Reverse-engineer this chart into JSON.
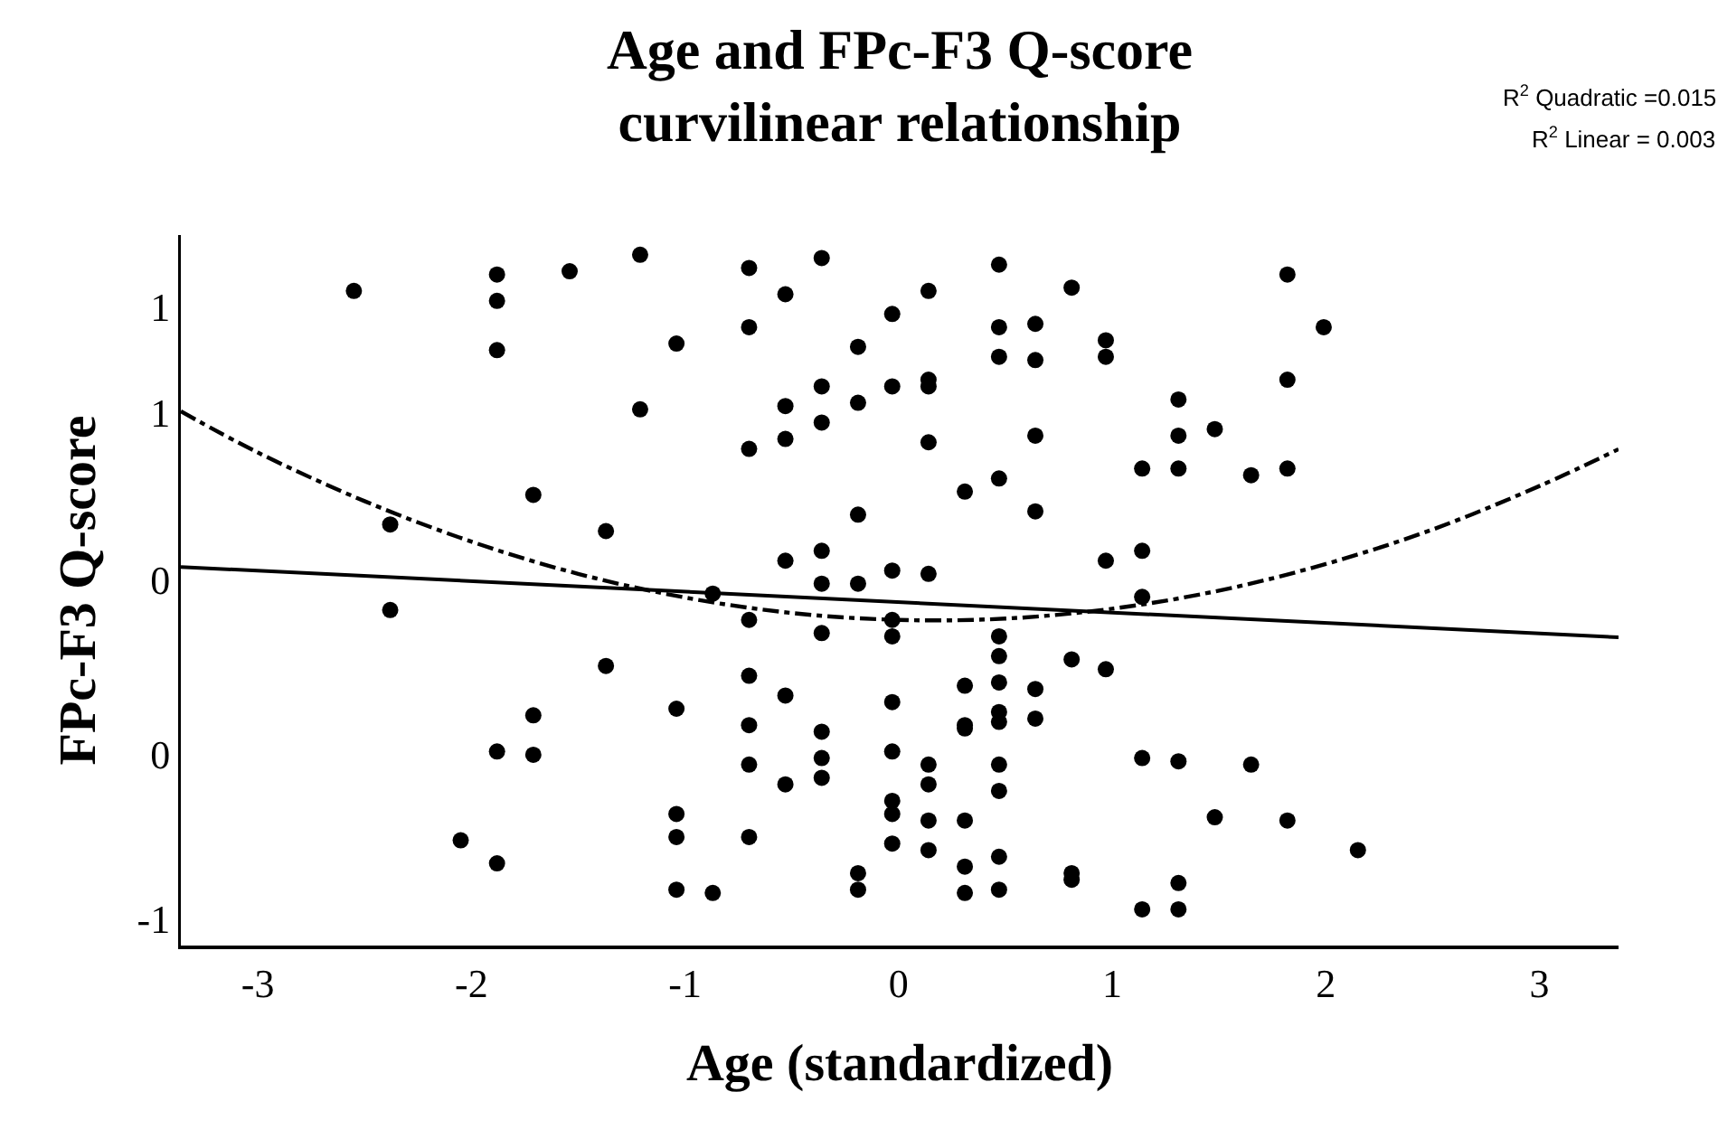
{
  "chart_data": {
    "type": "scatter",
    "title": "Age and FPc-F3 Q-score\ncurvilinear relationship",
    "xlabel": "Age (standardized)",
    "ylabel": "FPc-F3 Q-score",
    "annotations": [
      "R$^{2}$ Quadratic =0.015",
      "R$^{2}$ Linear = 0.003"
    ],
    "xlim": [
      -3.36,
      3.37
    ],
    "ylim": [
      -1.08,
      1.08
    ],
    "xticks": [
      -3,
      -2,
      -1,
      0,
      1,
      2,
      3
    ],
    "yticks": [
      {
        "value": -1,
        "label": "-1"
      },
      {
        "value": -0.5,
        "label": "0"
      },
      {
        "value": 0.03,
        "label": "0"
      },
      {
        "value": 0.54,
        "label": "1"
      },
      {
        "value": 0.86,
        "label": "1"
      }
    ],
    "grid": false,
    "marker": "circle",
    "series": [
      {
        "color": "#000000",
        "x": [
          -2.55,
          -1.88,
          -1.88,
          -1.88,
          -1.54,
          -1.21,
          -1.04,
          -1.21,
          -1.71,
          -1.37,
          -2.38,
          -2.38,
          -0.87,
          -1.37,
          -1.04,
          -1.71,
          -1.88,
          -1.71,
          -1.04,
          -1.04,
          -2.05,
          -1.88,
          -1.04,
          -0.87,
          -0.7,
          -0.36,
          -0.53,
          -0.7,
          -0.03,
          0.14,
          0.47,
          0.81,
          0.47,
          0.64,
          0.47,
          0.64,
          0.97,
          0.97,
          -0.19,
          -0.53,
          -0.36,
          -0.19,
          -0.03,
          0.14,
          0.14,
          -0.36,
          -0.53,
          -0.7,
          0.14,
          0.64,
          1.31,
          1.31,
          1.31,
          1.14,
          0.31,
          0.47,
          0.64,
          -0.19,
          -0.53,
          -0.36,
          -0.36,
          -0.19,
          -0.03,
          0.14,
          0.97,
          1.14,
          1.14,
          -0.7,
          -0.36,
          -0.03,
          -0.03,
          0.47,
          0.47,
          0.81,
          0.97,
          -0.7,
          -0.53,
          -0.7,
          -0.7,
          -0.53,
          -0.36,
          -0.36,
          -0.36,
          -0.03,
          -0.03,
          0.14,
          0.14,
          0.31,
          0.31,
          0.31,
          0.47,
          0.47,
          0.47,
          0.47,
          0.47,
          0.64,
          0.64,
          -0.03,
          -0.03,
          -0.03,
          0.14,
          0.14,
          0.31,
          0.31,
          0.31,
          0.47,
          0.47,
          -0.19,
          -0.19,
          0.81,
          0.81,
          1.14,
          1.31,
          -0.7,
          1.14,
          1.31,
          1.31,
          1.82,
          1.99,
          1.82,
          1.48,
          1.65,
          1.82,
          1.65,
          1.48,
          1.82,
          2.15
        ],
        "values": [
          0.91,
          0.96,
          0.88,
          0.73,
          0.97,
          1.02,
          0.75,
          0.55,
          0.29,
          0.18,
          0.2,
          -0.06,
          -0.01,
          -0.23,
          -0.36,
          -0.38,
          -0.49,
          -0.5,
          -0.68,
          -0.75,
          -0.76,
          -0.83,
          -0.91,
          -0.92,
          0.98,
          1.01,
          0.9,
          0.8,
          0.84,
          0.91,
          0.99,
          0.92,
          0.8,
          0.81,
          0.71,
          0.7,
          0.76,
          0.71,
          0.74,
          0.56,
          0.62,
          0.57,
          0.62,
          0.64,
          0.62,
          0.51,
          0.46,
          0.43,
          0.45,
          0.47,
          0.58,
          0.47,
          0.37,
          0.37,
          0.3,
          0.34,
          0.24,
          0.23,
          0.09,
          0.12,
          0.02,
          0.02,
          0.06,
          0.05,
          0.09,
          0.12,
          -0.02,
          -0.09,
          -0.13,
          -0.09,
          -0.14,
          -0.14,
          -0.2,
          -0.21,
          -0.24,
          -0.26,
          -0.32,
          -0.41,
          -0.53,
          -0.59,
          -0.43,
          -0.51,
          -0.57,
          -0.34,
          -0.49,
          -0.53,
          -0.59,
          -0.29,
          -0.41,
          -0.42,
          -0.28,
          -0.37,
          -0.4,
          -0.53,
          -0.61,
          -0.3,
          -0.39,
          -0.64,
          -0.68,
          -0.77,
          -0.7,
          -0.79,
          -0.7,
          -0.84,
          -0.92,
          -0.81,
          -0.91,
          -0.86,
          -0.91,
          -0.86,
          -0.88,
          -0.51,
          -0.52,
          -0.75,
          -0.97,
          -0.89,
          -0.97,
          0.96,
          0.8,
          0.64,
          0.49,
          0.35,
          0.37,
          -0.53,
          -0.69,
          -0.7,
          -0.79
        ]
      },
      {
        "type": "line",
        "color": "#000000",
        "marker": "none",
        "line_style": "solid",
        "x": [
          -3.36,
          3.37
        ],
        "values": [
          0.071,
          -0.143
        ]
      },
      {
        "type": "line",
        "color": "#000000",
        "marker": "none",
        "line_style": "dashed",
        "x": [
          -3.36,
          -3,
          -2.5,
          -2,
          -1.5,
          -1,
          -0.5,
          0,
          0.5,
          1,
          1.5,
          2,
          2.5,
          3,
          3.37
        ],
        "values": [
          0.544,
          0.419,
          0.271,
          0.148,
          0.05,
          -0.022,
          -0.069,
          -0.09,
          -0.086,
          -0.056,
          -0.001,
          0.08,
          0.185,
          0.317,
          0.429
        ]
      }
    ]
  }
}
